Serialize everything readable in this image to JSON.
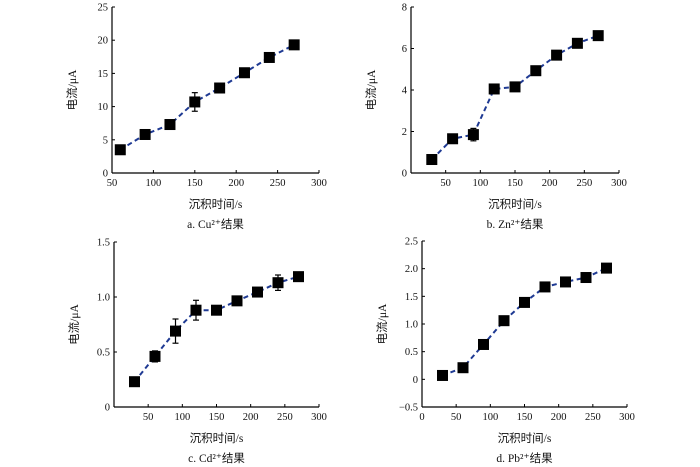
{
  "chart_data": [
    {
      "type": "line",
      "caption": "a. Cu²⁺结果",
      "xlabel": "沉积时间/s",
      "ylabel": "电流/μA",
      "xlim": [
        50,
        300
      ],
      "ylim": [
        0,
        25
      ],
      "xticks": [
        50,
        100,
        150,
        200,
        250,
        300
      ],
      "yticks": [
        0,
        5,
        10,
        15,
        20,
        25
      ],
      "x": [
        60,
        90,
        120,
        150,
        180,
        210,
        240,
        270
      ],
      "values": [
        3.5,
        5.8,
        7.3,
        10.7,
        12.8,
        15.1,
        17.4,
        19.3
      ],
      "errors": [
        0.3,
        0.4,
        0.3,
        1.4,
        0.3,
        0.3,
        0.3,
        0.3
      ],
      "line_color": "#1f3a93",
      "marker_color": "#000000",
      "grid": false
    },
    {
      "type": "line",
      "caption": "b. Zn²⁺结果",
      "xlabel": "沉积时间/s",
      "ylabel": "电流/μA",
      "xlim": [
        0,
        300
      ],
      "ylim": [
        0,
        8
      ],
      "xticks": [
        50,
        100,
        150,
        200,
        250,
        300
      ],
      "yticks": [
        0,
        2,
        4,
        6,
        8
      ],
      "x": [
        30,
        60,
        90,
        120,
        150,
        180,
        210,
        240,
        270
      ],
      "values": [
        0.65,
        1.65,
        1.85,
        4.05,
        4.15,
        4.93,
        5.68,
        6.25,
        6.62
      ],
      "errors": [
        0.1,
        0.1,
        0.3,
        0.2,
        0.1,
        0.1,
        0.1,
        0.1,
        0.1
      ],
      "line_color": "#1f3a93",
      "marker_color": "#000000",
      "grid": false
    },
    {
      "type": "line",
      "caption": "c. Cd²⁺结果",
      "xlabel": "沉积时间/s",
      "ylabel": "电流/μA",
      "xlim": [
        0,
        300
      ],
      "ylim": [
        0,
        1.5
      ],
      "xticks": [
        50,
        100,
        150,
        200,
        250,
        300
      ],
      "yticks": [
        0,
        0.5,
        1.0,
        1.5
      ],
      "ytick_labels": [
        "0",
        "0.5",
        "1.0",
        "1.5"
      ],
      "x": [
        30,
        60,
        90,
        120,
        150,
        180,
        210,
        240,
        270
      ],
      "values": [
        0.23,
        0.46,
        0.69,
        0.88,
        0.88,
        0.965,
        1.045,
        1.13,
        1.185
      ],
      "errors": [
        0.02,
        0.05,
        0.11,
        0.09,
        0.02,
        0.03,
        0.03,
        0.07,
        0.02
      ],
      "line_color": "#1f3a93",
      "marker_color": "#000000",
      "grid": false
    },
    {
      "type": "line",
      "caption": "d. Pb²⁺结果",
      "xlabel": "沉积时间/s",
      "ylabel": "电流/μA",
      "xlim": [
        0,
        300
      ],
      "ylim": [
        -0.5,
        2.5
      ],
      "xticks": [
        0,
        50,
        100,
        150,
        200,
        250,
        300
      ],
      "yticks": [
        -0.5,
        0,
        0.5,
        1.0,
        1.5,
        2.0,
        2.5
      ],
      "ytick_labels": [
        "−0.5",
        "0",
        "0.5",
        "1.0",
        "1.5",
        "2.0",
        "2.5"
      ],
      "x": [
        30,
        60,
        90,
        120,
        150,
        180,
        210,
        240,
        270
      ],
      "values": [
        0.07,
        0.21,
        0.63,
        1.06,
        1.39,
        1.67,
        1.76,
        1.84,
        2.01
      ],
      "errors": [
        0.03,
        0.05,
        0.06,
        0.04,
        0.04,
        0.04,
        0.04,
        0.04,
        0.04
      ],
      "line_color": "#1f3a93",
      "marker_color": "#000000",
      "grid": false
    }
  ]
}
